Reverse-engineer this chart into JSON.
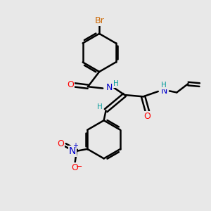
{
  "bg_color": "#e8e8e8",
  "bond_color": "#000000",
  "bond_width": 1.8,
  "atom_colors": {
    "Br": "#cc6600",
    "O": "#ff0000",
    "N": "#0000cc",
    "H": "#009999",
    "C": "#000000"
  },
  "font_size": 9,
  "font_size_small": 7.5
}
